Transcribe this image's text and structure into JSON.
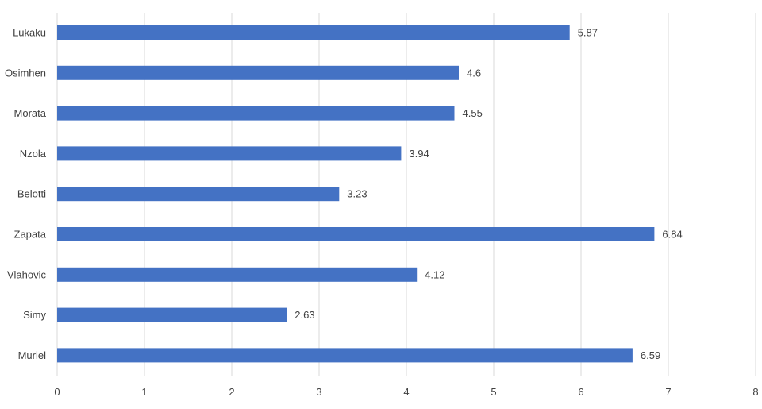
{
  "chart_data": {
    "type": "bar",
    "orientation": "horizontal",
    "categories": [
      "Lukaku",
      "Osimhen",
      "Morata",
      "Nzola",
      "Belotti",
      "Zapata",
      "Vlahovic",
      "Simy",
      "Muriel"
    ],
    "values": [
      5.87,
      4.6,
      4.55,
      3.94,
      3.23,
      6.84,
      4.12,
      2.63,
      6.59
    ],
    "data_labels": [
      "5.87",
      "4.6",
      "4.55",
      "3.94",
      "3.23",
      "6.84",
      "4.12",
      "2.63",
      "6.59"
    ],
    "xlim": [
      0,
      8
    ],
    "x_ticks": [
      "0",
      "1",
      "2",
      "3",
      "4",
      "5",
      "6",
      "7",
      "8"
    ],
    "grid": true,
    "legend": "none",
    "bar_color": "#4472c4",
    "grid_color": "#d9d9d9",
    "title": "",
    "xlabel": "",
    "ylabel": ""
  }
}
